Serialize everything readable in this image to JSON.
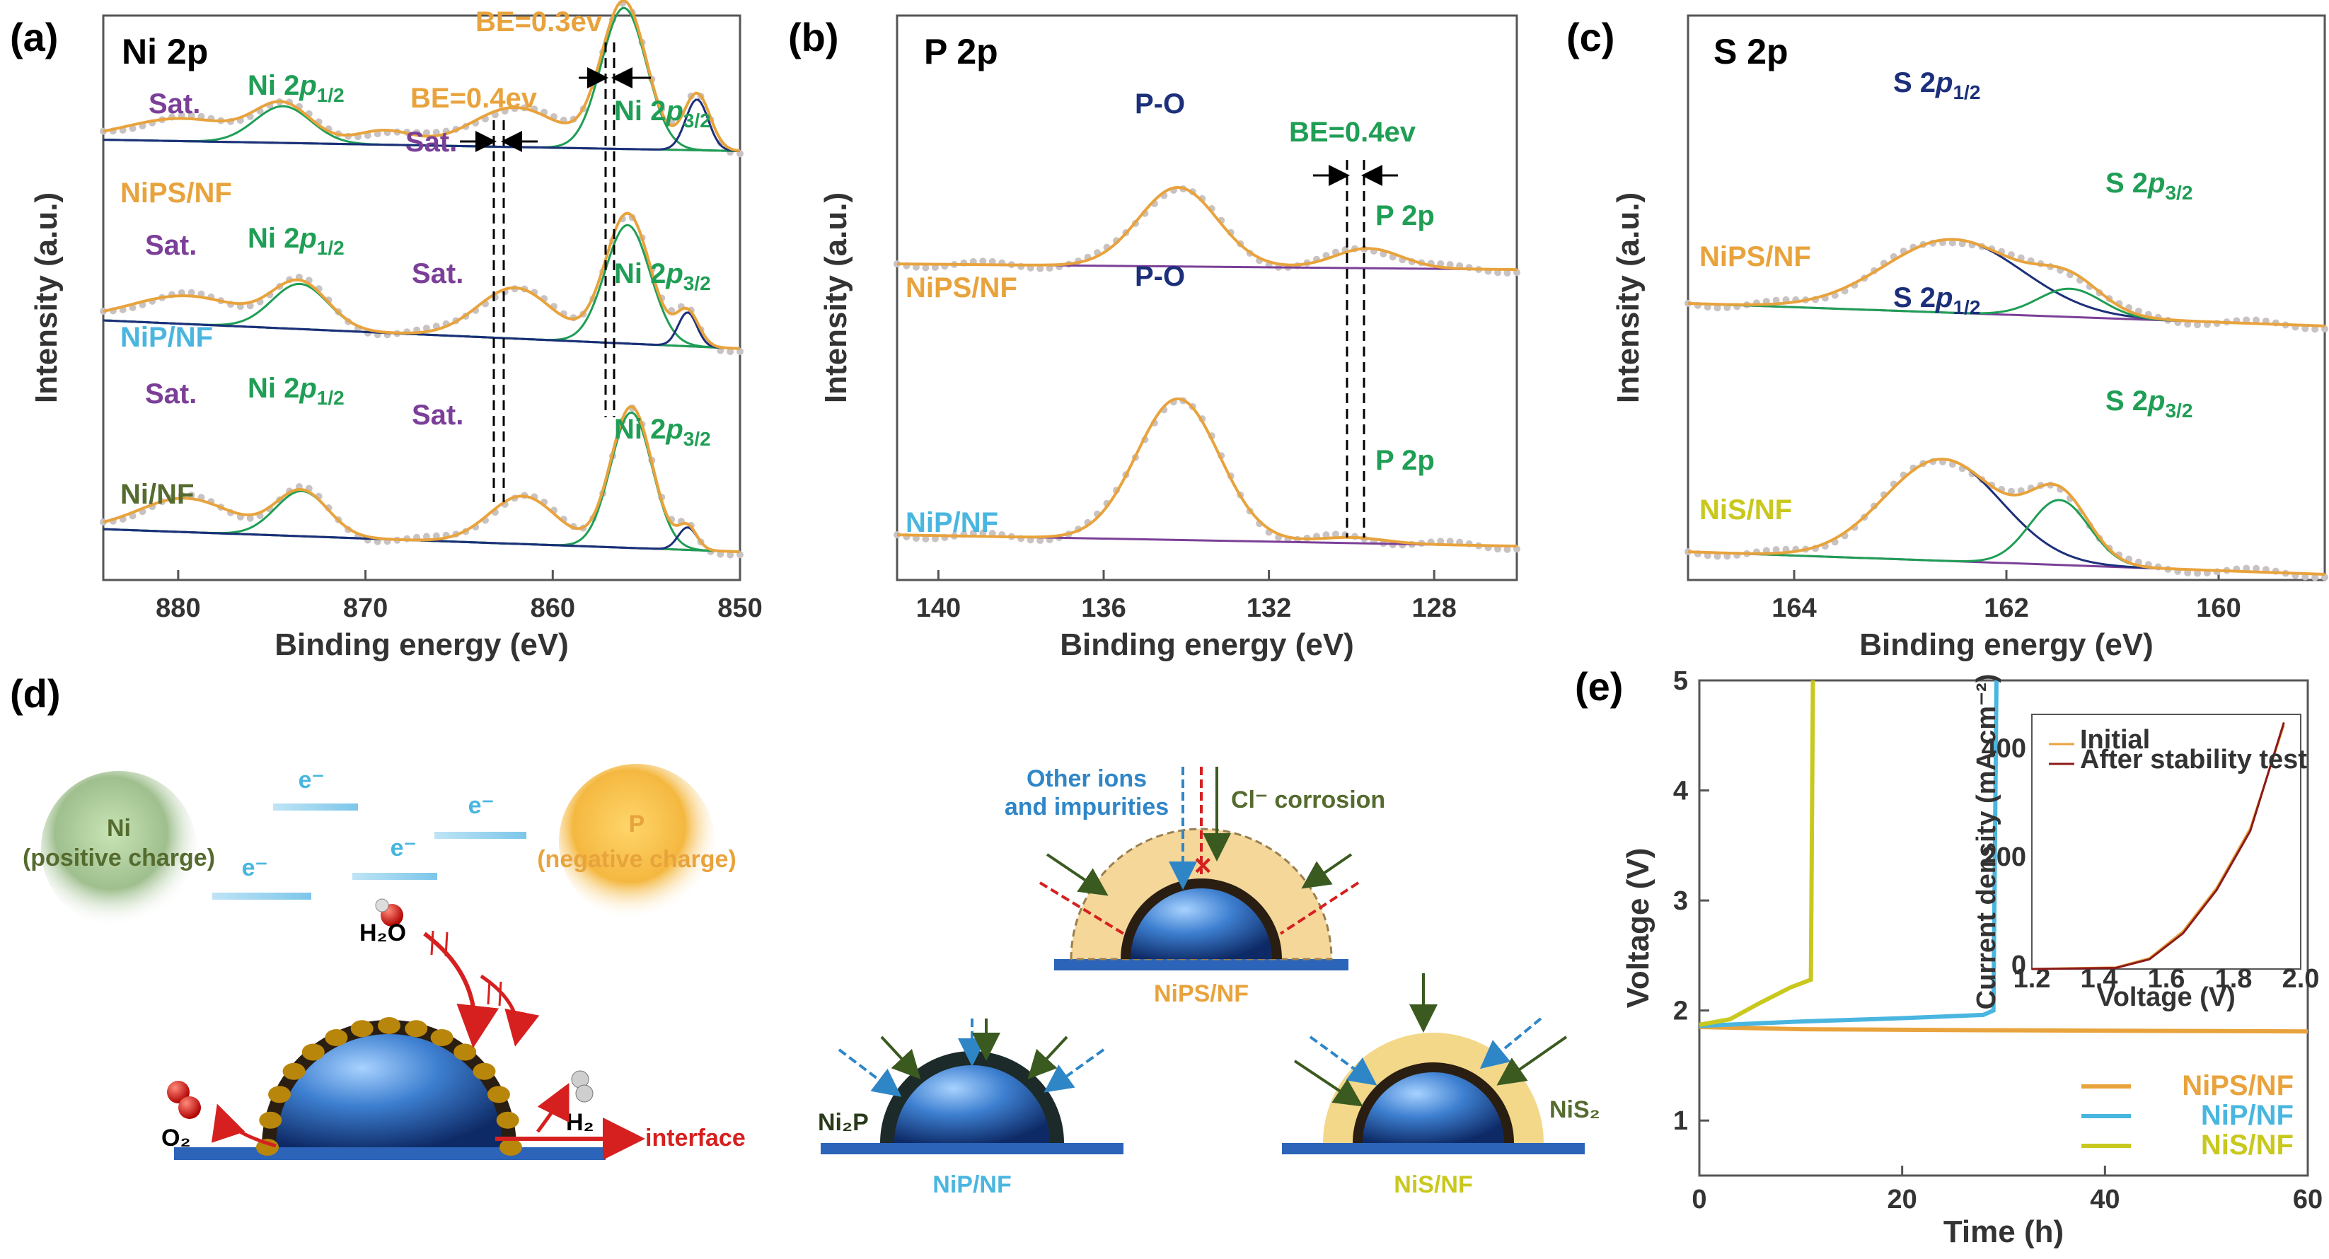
{
  "colors": {
    "orange": "#e8a33d",
    "purple": "#7b3f98",
    "green": "#1f9e55",
    "cyan": "#49b6e0",
    "navy": "#1c2f7a",
    "olive": "#556b2f",
    "lime": "#c8c81e",
    "red": "#d62020",
    "darkred": "#8b1a1a",
    "blue": "#2b64b8",
    "dotgray": "#c9c2c2"
  },
  "panels": {
    "a": "(a)",
    "b": "(b)",
    "c": "(c)",
    "d": "(d)",
    "e": "(e)"
  },
  "chart_data": [
    {
      "id": "a",
      "type": "line",
      "title": "Ni 2p",
      "xlabel": "Binding energy (eV)",
      "ylabel": "Intensity (a.u.)",
      "xlim": [
        884,
        850
      ],
      "xticks": [
        880,
        870,
        860,
        850
      ],
      "series": [
        {
          "name": "NiPS/NF",
          "offset": 0.86,
          "baseline": [
            0.14,
            0.1
          ],
          "peaks": [
            [
              879.8,
              0.08,
              3.0
            ],
            [
              874.4,
              0.13,
              1.5
            ],
            [
              869.0,
              0.05,
              1.5
            ],
            [
              862.0,
              0.14,
              2.3
            ],
            [
              856.2,
              0.52,
              1.2
            ],
            [
              852.3,
              0.2,
              0.7
            ]
          ],
          "components": [
            [
              874.4,
              0.13,
              1.5,
              "green"
            ],
            [
              856.2,
              0.5,
              1.2,
              "green"
            ],
            [
              852.3,
              0.18,
              0.6,
              "navy"
            ]
          ]
        },
        {
          "name": "NiP/NF",
          "offset": 0.52,
          "baseline": [
            0.18,
            0.08
          ],
          "peaks": [
            [
              879.5,
              0.1,
              3.0
            ],
            [
              873.5,
              0.16,
              1.5
            ],
            [
              862.0,
              0.18,
              2.0
            ],
            [
              856.0,
              0.46,
              1.2
            ],
            [
              852.8,
              0.12,
              0.6
            ]
          ],
          "components": [
            [
              873.5,
              0.16,
              1.5,
              "green"
            ],
            [
              856.0,
              0.42,
              1.2,
              "green"
            ],
            [
              852.8,
              0.12,
              0.5,
              "navy"
            ]
          ]
        },
        {
          "name": "Ni/NF",
          "offset": 0.17,
          "baseline": [
            0.14,
            0.06
          ],
          "peaks": [
            [
              879.6,
              0.12,
              2.5
            ],
            [
              873.4,
              0.16,
              1.4
            ],
            [
              861.6,
              0.17,
              1.8
            ],
            [
              855.8,
              0.5,
              1.1
            ],
            [
              852.8,
              0.08,
              0.5
            ]
          ],
          "components": [
            [
              873.4,
              0.16,
              1.4,
              "green"
            ],
            [
              855.8,
              0.48,
              1.1,
              "green"
            ],
            [
              852.8,
              0.08,
              0.5,
              "navy"
            ]
          ]
        }
      ],
      "labels": [
        {
          "text": "Ni 2p1/2",
          "sub": "1/2",
          "color": "green"
        },
        {
          "text": "Ni 2p3/2",
          "sub": "3/2",
          "color": "green"
        },
        {
          "text": "Sat.",
          "color": "purple"
        },
        {
          "text": "BE=0.3ev",
          "color": "orange"
        },
        {
          "text": "BE=0.4ev",
          "color": "orange"
        }
      ]
    },
    {
      "id": "b",
      "type": "line",
      "title": "P 2p",
      "xlabel": "Binding energy (eV)",
      "ylabel": "Intensity (a.u.)",
      "xlim": [
        141,
        126
      ],
      "xticks": [
        140,
        136,
        132,
        128
      ],
      "series": [
        {
          "name": "NiPS/NF",
          "offset": 0.7,
          "baseline": [
            0.02,
            0.0
          ],
          "peaks": [
            [
              134.2,
              0.28,
              0.95
            ],
            [
              129.6,
              0.07,
              0.8
            ]
          ]
        },
        {
          "name": "NiP/NF",
          "offset": 0.21,
          "baseline": [
            0.04,
            0.0
          ],
          "peaks": [
            [
              134.2,
              0.5,
              1.0
            ],
            [
              130.0,
              0.02,
              0.8
            ]
          ]
        }
      ],
      "labels": [
        {
          "text": "P-O",
          "color": "navy"
        },
        {
          "text": "P 2p",
          "color": "green"
        },
        {
          "text": "BE=0.4ev",
          "color": "green"
        }
      ]
    },
    {
      "id": "c",
      "type": "line",
      "title": "S 2p",
      "xlabel": "Binding energy (eV)",
      "ylabel": "Intensity (a.u.)",
      "xlim": [
        165,
        159
      ],
      "xticks": [
        164,
        162,
        160
      ],
      "series": [
        {
          "name": "NiPS/NF",
          "offset": 0.6,
          "baseline": [
            0.08,
            0.0
          ],
          "peaks": [
            [
              162.5,
              0.26,
              0.65
            ],
            [
              161.4,
              0.1,
              0.3
            ]
          ],
          "components": [
            [
              162.5,
              0.26,
              0.65,
              "navy"
            ],
            [
              161.4,
              0.1,
              0.3,
              "green"
            ]
          ]
        },
        {
          "name": "NiS/NF",
          "offset": 0.16,
          "baseline": [
            0.08,
            0.0
          ],
          "peaks": [
            [
              162.6,
              0.36,
              0.55
            ],
            [
              161.5,
              0.23,
              0.28
            ]
          ],
          "components": [
            [
              162.6,
              0.36,
              0.55,
              "navy"
            ],
            [
              161.5,
              0.23,
              0.28,
              "green"
            ]
          ]
        }
      ],
      "labels": [
        {
          "text": "S 2p1/2",
          "color": "navy"
        },
        {
          "text": "S 2p3/2",
          "color": "green"
        }
      ]
    },
    {
      "id": "e",
      "type": "line",
      "xlabel": "Time (h)",
      "ylabel": "Voltage (V)",
      "xlim": [
        0,
        60
      ],
      "ylim": [
        0.5,
        5
      ],
      "xticks": [
        0,
        20,
        40,
        60
      ],
      "yticks": [
        1,
        2,
        3,
        4,
        5
      ],
      "series": [
        {
          "name": "NiPS/NF",
          "color": "orange",
          "points": [
            [
              0,
              1.85
            ],
            [
              10,
              1.83
            ],
            [
              30,
              1.82
            ],
            [
              60,
              1.81
            ]
          ]
        },
        {
          "name": "NiP/NF",
          "color": "cyan",
          "points": [
            [
              0,
              1.86
            ],
            [
              10,
              1.9
            ],
            [
              20,
              1.93
            ],
            [
              28,
              1.96
            ],
            [
              29,
              2.0
            ],
            [
              29.3,
              5.0
            ]
          ]
        },
        {
          "name": "NiS/NF",
          "color": "lime",
          "points": [
            [
              0,
              1.87
            ],
            [
              3,
              1.92
            ],
            [
              6,
              2.07
            ],
            [
              9,
              2.21
            ],
            [
              11,
              2.28
            ],
            [
              11.2,
              5.0
            ]
          ]
        }
      ],
      "inset": {
        "xlabel": "Voltage (V)",
        "ylabel": "Current density (mA cm⁻²)",
        "xlim": [
          1.2,
          2.0
        ],
        "ylim": [
          0,
          470
        ],
        "xticks": [
          "1.2",
          "1.4",
          "1.6",
          "1.8",
          "2.0"
        ],
        "yticks": [
          "0",
          "200",
          "400"
        ],
        "series": [
          {
            "name": "Initial",
            "color": "orange",
            "points": [
              [
                1.2,
                0
              ],
              [
                1.45,
                3
              ],
              [
                1.55,
                20
              ],
              [
                1.65,
                70
              ],
              [
                1.75,
                150
              ],
              [
                1.85,
                260
              ],
              [
                1.95,
                450
              ]
            ]
          },
          {
            "name": "After stability test",
            "color": "darkred",
            "points": [
              [
                1.2,
                0
              ],
              [
                1.45,
                2
              ],
              [
                1.55,
                18
              ],
              [
                1.65,
                66
              ],
              [
                1.75,
                146
              ],
              [
                1.85,
                255
              ],
              [
                1.95,
                455
              ]
            ]
          }
        ]
      }
    }
  ],
  "diagram_d": {
    "electron": "e⁻",
    "ni_label": "Ni",
    "ni_sub": "(positive charge)",
    "p_label": "P",
    "p_sub": "(negative charge)",
    "h2o": "H₂O",
    "h2": "H₂",
    "o2": "O₂",
    "interface": "interface",
    "other_ions": "Other ions",
    "impurities": "and impurities",
    "cl": "Cl⁻  corrosion",
    "nips": "NiPS/NF",
    "nip": "NiP/NF",
    "nis": "NiS/NF",
    "ni2p": "Ni₂P",
    "nis2": "NiS₂"
  }
}
